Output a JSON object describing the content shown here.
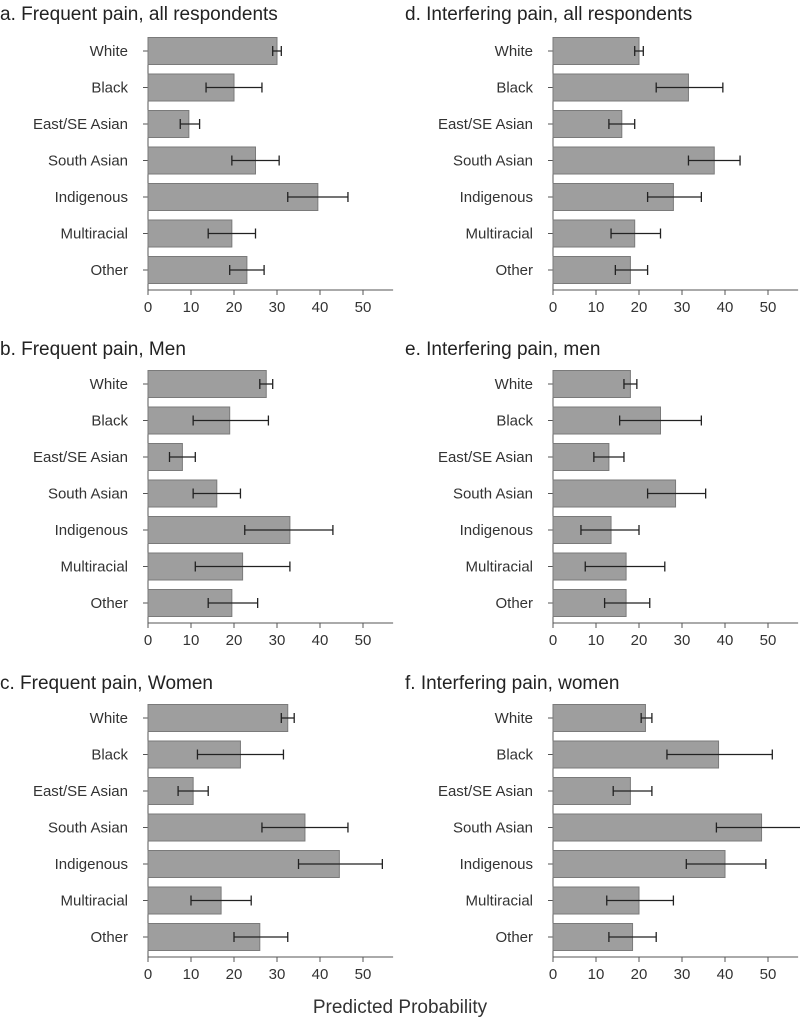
{
  "chart_data": [
    {
      "type": "bar",
      "orientation": "horizontal",
      "title": "a. Frequent pain, all respondents",
      "categories": [
        "White",
        "Black",
        "East/SE Asian",
        "South Asian",
        "Indigenous",
        "Multiracial",
        "Other"
      ],
      "values": [
        30,
        20,
        9.5,
        25,
        39.5,
        19.5,
        23
      ],
      "ci_low": [
        29,
        13.5,
        7.5,
        19.5,
        32.5,
        14,
        19
      ],
      "ci_high": [
        31,
        26.5,
        12,
        30.5,
        46.5,
        25,
        27
      ],
      "xlim": [
        0,
        57
      ],
      "xticks": [
        "0",
        "10",
        "20",
        "30",
        "40",
        "50"
      ]
    },
    {
      "type": "bar",
      "orientation": "horizontal",
      "title": "d. Interfering pain, all respondents",
      "categories": [
        "White",
        "Black",
        "East/SE Asian",
        "South Asian",
        "Indigenous",
        "Multiracial",
        "Other"
      ],
      "values": [
        20,
        31.5,
        16,
        37.5,
        28,
        19,
        18
      ],
      "ci_low": [
        19,
        24,
        13,
        31.5,
        22,
        13.5,
        14.5
      ],
      "ci_high": [
        21,
        39.5,
        19,
        43.5,
        34.5,
        25,
        22
      ],
      "xlim": [
        0,
        57
      ],
      "xticks": [
        "0",
        "10",
        "20",
        "30",
        "40",
        "50"
      ]
    },
    {
      "type": "bar",
      "orientation": "horizontal",
      "title": "b. Frequent pain, Men",
      "categories": [
        "White",
        "Black",
        "East/SE Asian",
        "South Asian",
        "Indigenous",
        "Multiracial",
        "Other"
      ],
      "values": [
        27.5,
        19,
        8,
        16,
        33,
        22,
        19.5
      ],
      "ci_low": [
        26,
        10.5,
        5,
        10.5,
        22.5,
        11,
        14
      ],
      "ci_high": [
        29,
        28,
        11,
        21.5,
        43,
        33,
        25.5
      ],
      "xlim": [
        0,
        57
      ],
      "xticks": [
        "0",
        "10",
        "20",
        "30",
        "40",
        "50"
      ]
    },
    {
      "type": "bar",
      "orientation": "horizontal",
      "title": "e. Interfering pain, men",
      "categories": [
        "White",
        "Black",
        "East/SE Asian",
        "South Asian",
        "Indigenous",
        "Multiracial",
        "Other"
      ],
      "values": [
        18,
        25,
        13,
        28.5,
        13.5,
        17,
        17
      ],
      "ci_low": [
        16.5,
        15.5,
        9.5,
        22,
        6.5,
        7.5,
        12
      ],
      "ci_high": [
        19.5,
        34.5,
        16.5,
        35.5,
        20,
        26,
        22.5
      ],
      "xlim": [
        0,
        57
      ],
      "xticks": [
        "0",
        "10",
        "20",
        "30",
        "40",
        "50"
      ]
    },
    {
      "type": "bar",
      "orientation": "horizontal",
      "title": "c. Frequent pain, Women",
      "categories": [
        "White",
        "Black",
        "East/SE Asian",
        "South Asian",
        "Indigenous",
        "Multiracial",
        "Other"
      ],
      "values": [
        32.5,
        21.5,
        10.5,
        36.5,
        44.5,
        17,
        26
      ],
      "ci_low": [
        31,
        11.5,
        7,
        26.5,
        35,
        10,
        20
      ],
      "ci_high": [
        34,
        31.5,
        14,
        46.5,
        54.5,
        24,
        32.5
      ],
      "xlim": [
        0,
        57
      ],
      "xticks": [
        "0",
        "10",
        "20",
        "30",
        "40",
        "50"
      ]
    },
    {
      "type": "bar",
      "orientation": "horizontal",
      "title": "f. Interfering pain, women",
      "categories": [
        "White",
        "Black",
        "East/SE Asian",
        "South Asian",
        "Indigenous",
        "Multiracial",
        "Other"
      ],
      "values": [
        21.5,
        38.5,
        18,
        48.5,
        40,
        20,
        18.5
      ],
      "ci_low": [
        20.5,
        26.5,
        14,
        38,
        31,
        12.5,
        13
      ],
      "ci_high": [
        23,
        51,
        23,
        59,
        49.5,
        28,
        24
      ],
      "xlim": [
        0,
        57
      ],
      "xticks": [
        "0",
        "10",
        "20",
        "30",
        "40",
        "50"
      ]
    }
  ],
  "xlabel": "Predicted Probability"
}
